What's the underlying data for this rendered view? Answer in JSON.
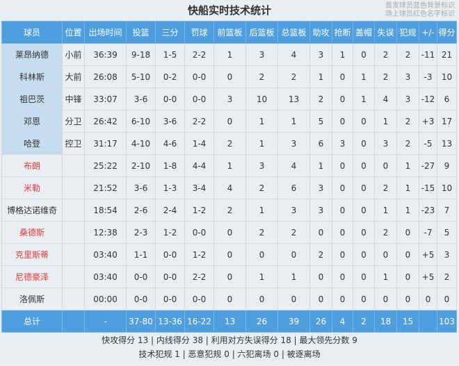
{
  "title": "快船实时技术统计",
  "legend_notes": [
    "首发球员蓝色背景标识",
    "场上球员红色名字标识"
  ],
  "colors": {
    "header": "#4f9fe0",
    "starter_bg": "#c8dcef",
    "on_court_name": "#e0393e"
  },
  "columns": [
    "球员",
    "位置",
    "出场时间",
    "投篮",
    "三分",
    "罚球",
    "前篮板",
    "后篮板",
    "总篮板",
    "助攻",
    "抢断",
    "盖帽",
    "失误",
    "犯规",
    "+/-",
    "得分"
  ],
  "rows": [
    {
      "type": "starter",
      "cells": [
        "莱昂纳德",
        "小前",
        "36:39",
        "9-18",
        "1-5",
        "2-2",
        "1",
        "3",
        "4",
        "3",
        "1",
        "0",
        "2",
        "2",
        "-11",
        "21"
      ]
    },
    {
      "type": "starter",
      "cells": [
        "科林斯",
        "大前",
        "26:08",
        "5-10",
        "0-2",
        "0-0",
        "0",
        "2",
        "2",
        "1",
        "0",
        "1",
        "2",
        "3",
        "-3",
        "10"
      ]
    },
    {
      "type": "starter",
      "cells": [
        "祖巴茨",
        "中锋",
        "33:07",
        "3-6",
        "0-0",
        "0-0",
        "3",
        "10",
        "13",
        "2",
        "0",
        "1",
        "4",
        "3",
        "-12",
        "6"
      ]
    },
    {
      "type": "starter",
      "cells": [
        "邓恩",
        "分卫",
        "26:42",
        "6-10",
        "3-6",
        "2-2",
        "0",
        "1",
        "1",
        "5",
        "0",
        "0",
        "1",
        "2",
        "+3",
        "17"
      ]
    },
    {
      "type": "starter",
      "cells": [
        "哈登",
        "控卫",
        "31:17",
        "4-10",
        "4-6",
        "1-4",
        "2",
        "1",
        "3",
        "6",
        "3",
        "0",
        "3",
        "2",
        "-5",
        "13"
      ]
    },
    {
      "type": "bench",
      "cells": [
        "布朗",
        "",
        "25:22",
        "2-10",
        "1-8",
        "4-4",
        "1",
        "3",
        "4",
        "1",
        "0",
        "0",
        "0",
        "1",
        "-27",
        "9"
      ]
    },
    {
      "type": "bench",
      "cells": [
        "米勒",
        "",
        "21:52",
        "3-6",
        "1-3",
        "3-4",
        "4",
        "2",
        "6",
        "3",
        "0",
        "0",
        "2",
        "1",
        "-15",
        "10"
      ]
    },
    {
      "type": "normal",
      "cells": [
        "博格达诺维奇",
        "",
        "18:54",
        "2-6",
        "2-4",
        "1-2",
        "2",
        "1",
        "3",
        "3",
        "0",
        "0",
        "1",
        "1",
        "-23",
        "7"
      ]
    },
    {
      "type": "bench",
      "cells": [
        "桑德斯",
        "",
        "12:38",
        "2-3",
        "1-2",
        "0-0",
        "0",
        "2",
        "2",
        "0",
        "0",
        "0",
        "2",
        "0",
        "-7",
        "5"
      ]
    },
    {
      "type": "bench",
      "cells": [
        "克里斯蒂",
        "",
        "03:40",
        "1-1",
        "0-0",
        "1-2",
        "0",
        "0",
        "0",
        "2",
        "0",
        "0",
        "0",
        "0",
        "+5",
        "3"
      ]
    },
    {
      "type": "bench",
      "cells": [
        "尼德豪泽",
        "",
        "03:40",
        "0-0",
        "0-0",
        "2-2",
        "0",
        "1",
        "1",
        "0",
        "0",
        "0",
        "1",
        "0",
        "+5",
        "2"
      ]
    },
    {
      "type": "normal",
      "cells": [
        "洛佩斯",
        "",
        "00:00",
        "0-0",
        "0-0",
        "0-0",
        "0",
        "0",
        "0",
        "0",
        "0",
        "0",
        "0",
        "0",
        "0",
        "0"
      ]
    }
  ],
  "total": [
    "总计",
    "",
    "-",
    "37-80",
    "13-36",
    "16-22",
    "13",
    "26",
    "39",
    "26",
    "4",
    "2",
    "18",
    "15",
    "",
    "103"
  ],
  "footer": [
    "快攻得分 13 | 内线得分 38 | 利用对方失误得分 18 | 最大领先分数 9",
    "技术犯规 1 | 恶意犯规 0 | 六犯离场 0 | 被逐离场"
  ]
}
